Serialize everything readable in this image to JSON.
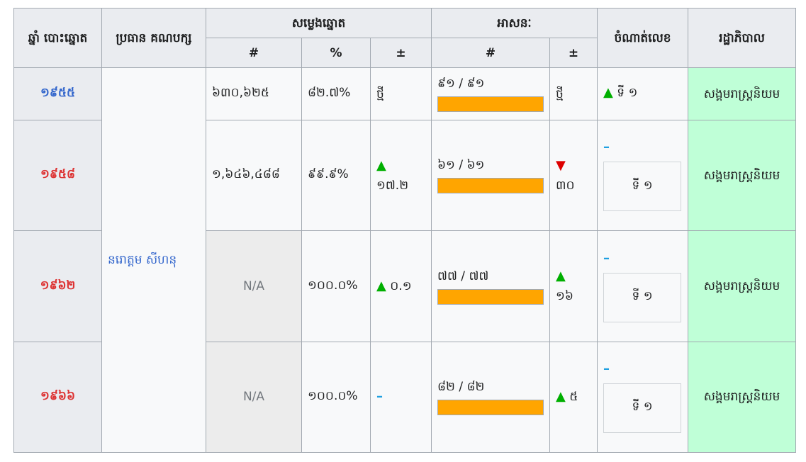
{
  "headers": {
    "year": "ឆ្នាំ បោះឆ្នោត",
    "leader": "ប្រធាន គណបក្ស",
    "votes": "សម្លេងឆ្នោត",
    "seats": "អាសនៈ",
    "position": "ចំណាត់លេខ",
    "government": "រដ្ឋាភិបាល",
    "col_num": "#",
    "col_pct": "%",
    "col_pm": "±"
  },
  "leader_name": "នរោត្តម សីហនុ",
  "rows": [
    {
      "year": "១៩៥៥",
      "votes": "៦៣០,៦២៥",
      "pct": "៨២.៧%",
      "pct_change": "ថ្មី",
      "seats": "៩១ / ៩១",
      "seats_change": "ថ្មី",
      "position": "ទី ១",
      "government": "សង្គមរាស្ត្រនិយម"
    },
    {
      "year": "១៩៥៨",
      "votes": "១,៦៤៦,៤៨៨",
      "pct": "៩៩.៩%",
      "pct_change": "១៧.២",
      "seats": "៦១ / ៦១",
      "seats_change": "៣០",
      "position": "ទី ១",
      "government": "សង្គមរាស្ត្រនិយម"
    },
    {
      "year": "១៩៦២",
      "votes": "N/A",
      "pct": "១០០.០%",
      "pct_change": "០.១",
      "seats": "៧៧ / ៧៧",
      "seats_change": "១៦",
      "position": "ទី ១",
      "government": "សង្គមរាស្ត្រនិយម"
    },
    {
      "year": "១៩៦៦",
      "votes": "N/A",
      "pct": "១០០.០%",
      "pct_change": "",
      "seats": "៨២ / ៨២",
      "seats_change": "៥",
      "position": "ទី ១",
      "government": "សង្គមរាស្ត្រនិយម"
    }
  ],
  "icons": {
    "up": "▲",
    "down": "▼",
    "same": "–"
  },
  "colors": {
    "seat_bar": "#ffa500",
    "government_bg": "#bfffd7",
    "up": "#00af00",
    "down": "#dd0000",
    "same": "#1fa0e0"
  }
}
